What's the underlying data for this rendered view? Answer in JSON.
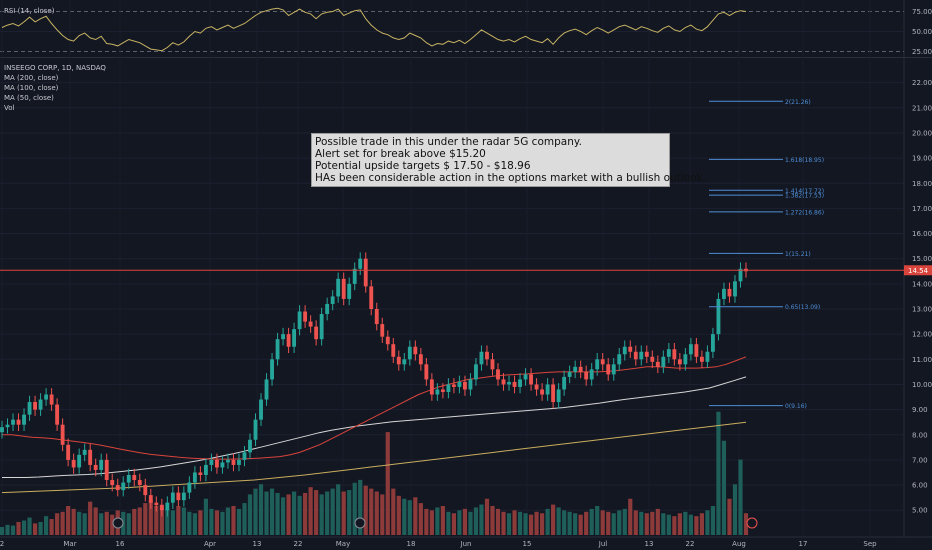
{
  "rsi_legend": "RSI (14, close)",
  "main_legend": [
    "INSEEGO CORP, 1D, NASDAQ",
    "MA (200, close)",
    "MA (100, close)",
    "MA (50, close)",
    "Vol"
  ],
  "note_lines": [
    "Possible trade in this under the radar 5G company.",
    "Alert set for break above $15.20",
    "Potential upside targets $ 17.50 - $18.96",
    "HAs been considerable action in the options market with a bullish outlook."
  ],
  "colors": {
    "up": "#26a69a",
    "down": "#ef5350",
    "vol_up": "#1f5f5a",
    "vol_down": "#8c3a3a",
    "rsi": "#c7b363",
    "ma200": "#c9ad5e",
    "ma100": "#d6d6d6",
    "ma50": "#d9443c",
    "fib": "#4f8ed6",
    "price_line": "#d9443c"
  },
  "chart_data": {
    "type": "candlestick",
    "price_axis": {
      "ticks": [
        5,
        6,
        7,
        8,
        9,
        10,
        11,
        12,
        13,
        14,
        15,
        16,
        17,
        18,
        19,
        20,
        21,
        22
      ]
    },
    "rsi_axis": {
      "ticks": [
        25,
        50,
        75
      ]
    },
    "x_ticks": [
      "2",
      "Mar",
      "16",
      "Apr",
      "13",
      "22",
      "May",
      "18",
      "Jun",
      "15",
      "Jul",
      "13",
      "22",
      "Aug",
      "17",
      "Sep"
    ],
    "current_price": 14.54,
    "fib_levels": [
      {
        "label": "2(21.26)",
        "value": 21.26
      },
      {
        "label": "1.618(18.95)",
        "value": 18.95
      },
      {
        "label": "1.414(17.72)",
        "value": 17.72
      },
      {
        "label": "1.382(17.53)",
        "value": 17.53
      },
      {
        "label": "1.272(16.86)",
        "value": 16.86
      },
      {
        "label": "1(15.21)",
        "value": 15.21
      },
      {
        "label": "0.65(13.09)",
        "value": 13.09
      },
      {
        "label": "0(9.16)",
        "value": 9.16
      }
    ],
    "closes": [
      8.3,
      8.4,
      8.6,
      8.4,
      8.8,
      9.3,
      9.0,
      9.4,
      9.6,
      9.2,
      8.4,
      7.6,
      7.0,
      6.7,
      7.2,
      7.4,
      6.8,
      6.6,
      7.0,
      6.2,
      6.0,
      5.8,
      6.1,
      6.4,
      6.2,
      6.0,
      5.6,
      5.3,
      5.2,
      5.0,
      5.3,
      5.7,
      5.4,
      5.7,
      6.1,
      6.5,
      6.4,
      6.8,
      7.0,
      6.7,
      6.9,
      7.0,
      6.8,
      7.0,
      7.3,
      7.8,
      8.6,
      9.4,
      10.2,
      11.0,
      11.8,
      12.0,
      11.5,
      12.2,
      12.9,
      12.5,
      12.3,
      11.8,
      12.8,
      13.2,
      13.5,
      14.2,
      13.4,
      14.0,
      14.6,
      15.0,
      13.9,
      13.0,
      12.4,
      11.9,
      11.6,
      11.1,
      10.8,
      11.0,
      11.5,
      11.2,
      10.8,
      10.2,
      9.6,
      9.8,
      9.7,
      10.0,
      9.9,
      10.1,
      9.8,
      10.2,
      10.8,
      11.3,
      11.0,
      10.6,
      10.2,
      10.0,
      10.1,
      9.9,
      10.2,
      10.4,
      10.0,
      9.8,
      9.6,
      10.0,
      9.3,
      9.8,
      10.3,
      10.5,
      10.7,
      10.5,
      10.2,
      10.6,
      11.0,
      10.8,
      10.4,
      10.8,
      11.2,
      11.5,
      11.3,
      11.0,
      11.3,
      11.1,
      10.9,
      10.7,
      11.1,
      11.4,
      11.0,
      10.8,
      11.2,
      11.6,
      11.1,
      10.9,
      11.3,
      12.0,
      13.4,
      13.8,
      13.5,
      14.1,
      14.6,
      14.5
    ],
    "ma50": [
      8.0,
      8.0,
      7.95,
      7.9,
      7.88,
      7.85,
      7.8,
      7.75,
      7.7,
      7.65,
      7.58,
      7.5,
      7.42,
      7.35,
      7.28,
      7.22,
      7.18,
      7.14,
      7.1,
      7.07,
      7.05,
      7.04,
      7.03,
      7.03,
      7.04,
      7.05,
      7.07,
      7.1,
      7.13,
      7.2,
      7.3,
      7.45,
      7.6,
      7.8,
      8.0,
      8.2,
      8.4,
      8.6,
      8.8,
      9.0,
      9.2,
      9.4,
      9.6,
      9.75,
      9.9,
      10.0,
      10.1,
      10.2,
      10.25,
      10.3,
      10.35,
      10.38,
      10.4,
      10.42,
      10.45,
      10.48,
      10.5,
      10.5,
      10.5,
      10.5,
      10.5,
      10.52,
      10.55,
      10.6,
      10.65,
      10.7,
      10.7,
      10.68,
      10.65,
      10.65,
      10.65,
      10.67,
      10.7,
      10.8,
      10.95,
      11.1
    ],
    "ma100": [
      6.3,
      6.3,
      6.3,
      6.32,
      6.35,
      6.38,
      6.4,
      6.42,
      6.45,
      6.5,
      6.55,
      6.6,
      6.66,
      6.72,
      6.8,
      6.88,
      6.96,
      7.05,
      7.15,
      7.25,
      7.36,
      7.48,
      7.6,
      7.72,
      7.84,
      7.96,
      8.08,
      8.18,
      8.26,
      8.34,
      8.4,
      8.46,
      8.52,
      8.56,
      8.6,
      8.64,
      8.68,
      8.72,
      8.76,
      8.8,
      8.84,
      8.88,
      8.92,
      8.96,
      9.0,
      9.04,
      9.08,
      9.14,
      9.2,
      9.26,
      9.33,
      9.4,
      9.46,
      9.52,
      9.58,
      9.64,
      9.7,
      9.78,
      9.86,
      10.0,
      10.15,
      10.3
    ],
    "ma200": [
      5.7,
      5.72,
      5.74,
      5.76,
      5.78,
      5.8,
      5.82,
      5.84,
      5.86,
      5.88,
      5.9,
      5.93,
      5.96,
      5.99,
      6.02,
      6.05,
      6.08,
      6.11,
      6.14,
      6.17,
      6.2,
      6.25,
      6.3,
      6.35,
      6.4,
      6.46,
      6.52,
      6.58,
      6.64,
      6.7,
      6.76,
      6.82,
      6.88,
      6.94,
      7.0,
      7.06,
      7.12,
      7.18,
      7.24,
      7.3,
      7.36,
      7.42,
      7.48,
      7.54,
      7.6,
      7.66,
      7.72,
      7.78,
      7.84,
      7.9,
      7.96,
      8.02,
      8.08,
      8.14,
      8.2,
      8.26,
      8.32,
      8.38,
      8.44,
      8.5
    ],
    "rsi": [
      55,
      58,
      60,
      57,
      62,
      68,
      62,
      66,
      69,
      60,
      52,
      45,
      40,
      38,
      45,
      48,
      42,
      40,
      44,
      35,
      34,
      32,
      36,
      40,
      38,
      36,
      32,
      28,
      27,
      26,
      30,
      36,
      33,
      37,
      44,
      50,
      48,
      54,
      56,
      52,
      55,
      58,
      54,
      57,
      60,
      65,
      70,
      74,
      76,
      78,
      79,
      77,
      70,
      74,
      78,
      74,
      72,
      66,
      72,
      74,
      75,
      78,
      70,
      73,
      76,
      77,
      66,
      58,
      52,
      48,
      46,
      42,
      40,
      42,
      48,
      45,
      42,
      36,
      32,
      35,
      34,
      38,
      36,
      39,
      35,
      40,
      46,
      52,
      48,
      44,
      40,
      38,
      40,
      37,
      41,
      44,
      40,
      38,
      36,
      41,
      34,
      42,
      48,
      51,
      53,
      50,
      46,
      51,
      55,
      52,
      48,
      52,
      56,
      58,
      55,
      52,
      56,
      54,
      51,
      49,
      54,
      57,
      52,
      50,
      55,
      58,
      53,
      51,
      56,
      64,
      72,
      74,
      70,
      74,
      76,
      75
    ],
    "volumes": [
      0.55,
      0.7,
      0.65,
      0.9,
      1.0,
      1.2,
      0.8,
      0.9,
      1.3,
      1.1,
      1.5,
      1.6,
      2.0,
      1.8,
      1.6,
      1.5,
      2.3,
      1.9,
      1.5,
      1.6,
      1.4,
      1.7,
      1.6,
      1.5,
      1.8,
      1.9,
      2.2,
      2.4,
      2.0,
      2.1,
      1.8,
      1.7,
      2.0,
      1.9,
      1.6,
      1.5,
      1.7,
      2.5,
      1.8,
      1.7,
      1.6,
      1.9,
      2.0,
      1.8,
      2.2,
      2.8,
      3.2,
      3.5,
      3.0,
      3.2,
      2.9,
      2.6,
      2.8,
      3.0,
      2.7,
      2.9,
      3.3,
      3.1,
      2.8,
      3.0,
      3.2,
      3.5,
      3.0,
      3.1,
      3.6,
      3.8,
      3.4,
      3.2,
      3.0,
      2.8,
      7.1,
      3.2,
      2.7,
      2.5,
      2.4,
      2.6,
      2.2,
      1.8,
      1.7,
      1.9,
      2.0,
      1.6,
      1.5,
      1.7,
      1.8,
      1.6,
      1.9,
      2.1,
      2.5,
      2.0,
      1.8,
      1.6,
      1.5,
      1.7,
      1.6,
      1.5,
      1.4,
      1.6,
      1.5,
      1.8,
      2.1,
      1.9,
      1.7,
      1.6,
      1.5,
      1.4,
      1.6,
      1.8,
      2.0,
      1.7,
      1.6,
      1.5,
      1.7,
      1.8,
      2.5,
      1.7,
      1.6,
      1.5,
      1.6,
      1.8,
      1.5,
      1.4,
      1.3,
      1.5,
      1.6,
      1.4,
      1.3,
      1.5,
      1.7,
      2.0,
      8.5,
      6.5,
      2.5,
      3.5,
      5.2,
      1.5
    ]
  }
}
